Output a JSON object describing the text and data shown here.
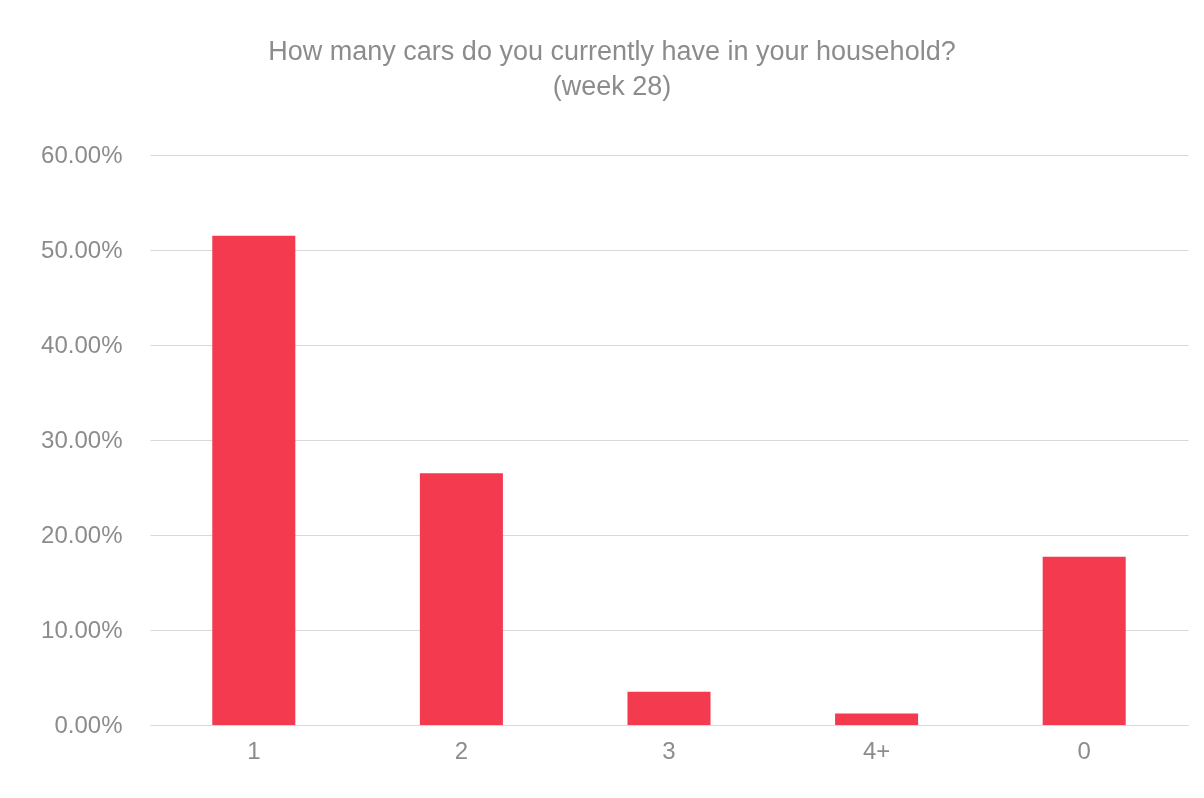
{
  "chart_data": {
    "type": "bar",
    "title": "How many cars do you currently have in your household?",
    "subtitle": "(week 28)",
    "categories": [
      "1",
      "2",
      "3",
      "4+",
      "0"
    ],
    "values": [
      51.5,
      26.5,
      3.5,
      1.2,
      17.7
    ],
    "color": "#f43a4f",
    "ylim": [
      0,
      60
    ],
    "yticks": [
      {
        "value": 0,
        "label": "0.00%"
      },
      {
        "value": 10,
        "label": "10.00%"
      },
      {
        "value": 20,
        "label": "20.00%"
      },
      {
        "value": 30,
        "label": "30.00%"
      },
      {
        "value": 40,
        "label": "40.00%"
      },
      {
        "value": 50,
        "label": "50.00%"
      },
      {
        "value": 60,
        "label": "60.00%"
      }
    ],
    "grid": "y"
  }
}
